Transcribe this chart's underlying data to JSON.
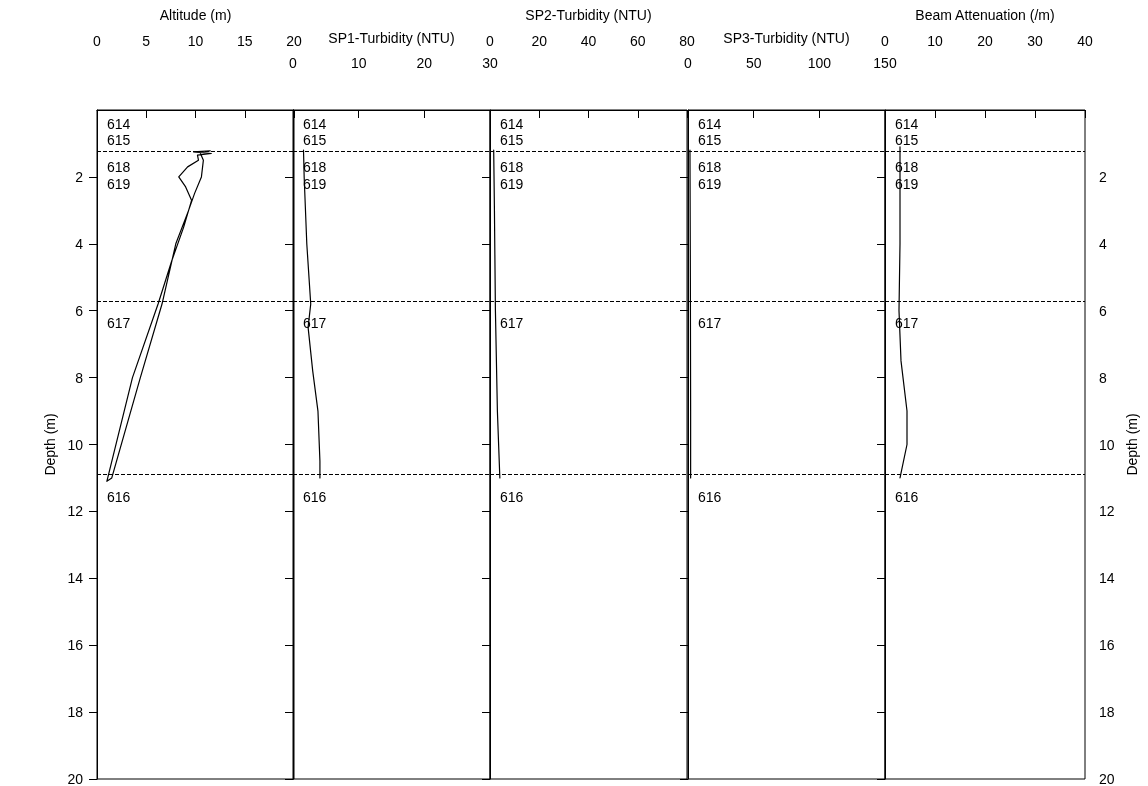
{
  "chart_data": [
    {
      "type": "line",
      "xlabel": "Altitude (m)",
      "ylabel": "Depth (m)",
      "xlim": [
        0,
        20
      ],
      "xticks": [
        0,
        5,
        10,
        15,
        20
      ],
      "ylim": [
        20,
        0
      ],
      "yticks": [
        2,
        4,
        6,
        8,
        10,
        12,
        14,
        16,
        18,
        20
      ],
      "grid": false,
      "line_style": "solid",
      "series": [
        {
          "color": "#000000",
          "x": [
            11.5,
            9.8,
            11.6,
            10.2,
            10.3,
            9.2,
            8.3,
            9.0,
            9.6,
            8.8,
            7.6,
            6.2,
            3.6,
            1.0,
            1.5,
            4.4,
            6.6,
            8.0,
            9.3,
            9.9,
            10.6,
            10.8,
            10.5
          ],
          "values": [
            1.22,
            1.25,
            1.3,
            1.35,
            1.5,
            1.7,
            2.0,
            2.3,
            2.7,
            3.5,
            4.5,
            5.8,
            8.0,
            11.1,
            11.0,
            8.0,
            5.8,
            4.0,
            3.0,
            2.5,
            2.0,
            1.5,
            1.3
          ]
        }
      ],
      "ref_lines": [
        {
          "axis": "y",
          "value": 1.22,
          "line_style": "dashed"
        },
        {
          "axis": "y",
          "value": 5.73,
          "line_style": "dashed"
        },
        {
          "axis": "y",
          "value": 10.9,
          "line_style": "dashed"
        }
      ],
      "annotations": [
        "614",
        "615",
        "618",
        "619",
        "617",
        "616"
      ]
    },
    {
      "type": "line",
      "xlabel": "SP1-Turbidity (NTU)",
      "xlim": [
        0,
        30
      ],
      "xticks": [
        0,
        10,
        20,
        30
      ],
      "ylim": [
        20,
        0
      ],
      "yticks": [
        2,
        4,
        6,
        8,
        10,
        12,
        14,
        16,
        18,
        20
      ],
      "tick_labels": "x",
      "grid": false,
      "line_style": "solid",
      "series": [
        {
          "color": "#000000",
          "x": [
            1.6,
            1.7,
            2.1,
            2.7,
            2.3,
            3.0,
            3.8,
            4.1,
            4.1
          ],
          "values": [
            1.2,
            2.0,
            4.0,
            5.8,
            6.5,
            7.8,
            9.0,
            10.5,
            11.0
          ]
        }
      ],
      "ref_lines": [
        {
          "axis": "y",
          "value": 1.22,
          "line_style": "dashed"
        },
        {
          "axis": "y",
          "value": 5.73,
          "line_style": "dashed"
        },
        {
          "axis": "y",
          "value": 10.9,
          "line_style": "dashed"
        }
      ],
      "annotations": [
        "614",
        "615",
        "618",
        "619",
        "617",
        "616"
      ]
    },
    {
      "type": "line",
      "xlabel": "SP2-Turbidity (NTU)",
      "xlim": [
        0,
        80
      ],
      "xticks": [
        0,
        20,
        40,
        60,
        80
      ],
      "ylim": [
        20,
        0
      ],
      "yticks": [
        2,
        4,
        6,
        8,
        10,
        12,
        14,
        16,
        18,
        20
      ],
      "tick_labels": "x",
      "grid": false,
      "line_style": "solid",
      "series": [
        {
          "color": "#000000",
          "x": [
            1.5,
            1.8,
            2.2,
            3,
            4
          ],
          "values": [
            1.2,
            3.0,
            6.0,
            9.0,
            11.0
          ]
        }
      ],
      "ref_lines": [
        {
          "axis": "y",
          "value": 1.22,
          "line_style": "dashed"
        },
        {
          "axis": "y",
          "value": 5.73,
          "line_style": "dashed"
        },
        {
          "axis": "y",
          "value": 10.9,
          "line_style": "dashed"
        }
      ],
      "annotations": [
        "614",
        "615",
        "618",
        "619",
        "617",
        "616"
      ]
    },
    {
      "type": "line",
      "xlabel": "SP3-Turbidity (NTU)",
      "xlim": [
        0,
        150
      ],
      "xticks": [
        0,
        50,
        100,
        150
      ],
      "ylim": [
        20,
        0
      ],
      "yticks": [
        2,
        4,
        6,
        8,
        10,
        12,
        14,
        16,
        18,
        20
      ],
      "tick_labels": "x",
      "grid": false,
      "line_style": "solid",
      "series": [
        {
          "color": "#000000",
          "x": [
            1.5,
            1.8,
            2,
            2
          ],
          "values": [
            1.2,
            5.0,
            9.0,
            11.0
          ]
        }
      ],
      "ref_lines": [
        {
          "axis": "y",
          "value": 1.22,
          "line_style": "dashed"
        },
        {
          "axis": "y",
          "value": 5.73,
          "line_style": "dashed"
        },
        {
          "axis": "y",
          "value": 10.9,
          "line_style": "dashed"
        }
      ],
      "annotations": [
        "614",
        "615",
        "618",
        "619",
        "617",
        "616"
      ]
    },
    {
      "type": "line",
      "xlabel": "Beam Attenuation (/m)",
      "ylabel": "Depth (m)",
      "xlim": [
        0,
        40
      ],
      "xticks": [
        0,
        10,
        20,
        30,
        40
      ],
      "ylim": [
        20,
        0
      ],
      "yticks": [
        2,
        4,
        6,
        8,
        10,
        12,
        14,
        16,
        18,
        20
      ],
      "grid": false,
      "line_style": "solid",
      "series": [
        {
          "color": "#000000",
          "x": [
            3,
            3,
            2.8,
            3.2,
            4.4,
            4.4,
            3
          ],
          "values": [
            1.1,
            4.0,
            6.0,
            7.5,
            9.0,
            10.0,
            11.0
          ]
        }
      ],
      "ref_lines": [
        {
          "axis": "y",
          "value": 1.22,
          "line_style": "dashed"
        },
        {
          "axis": "y",
          "value": 5.73,
          "line_style": "dashed"
        },
        {
          "axis": "y",
          "value": 10.9,
          "line_style": "dashed"
        }
      ],
      "annotations": [
        "614",
        "615",
        "618",
        "619",
        "617",
        "616"
      ]
    }
  ]
}
